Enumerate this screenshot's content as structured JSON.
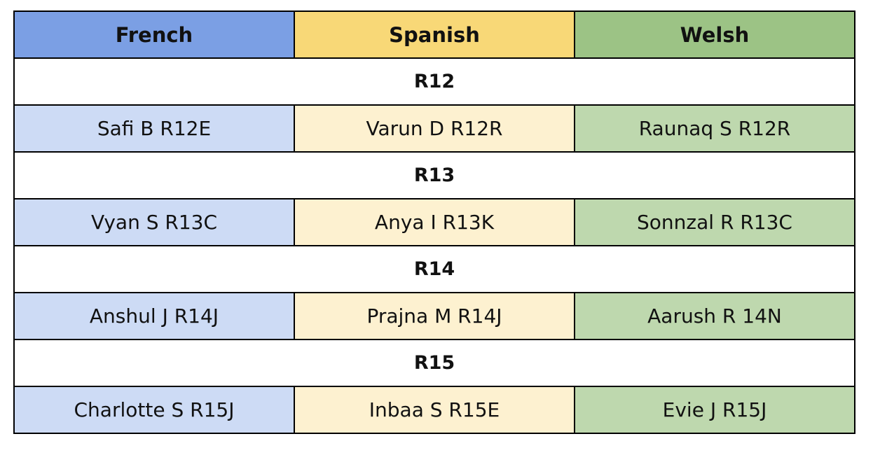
{
  "colors": {
    "french_header": "#7b9fe4",
    "spanish_header": "#f8d877",
    "welsh_header": "#9cc385",
    "french_cell": "#cddbf5",
    "spanish_cell": "#fdf1d0",
    "welsh_cell": "#bed8ae",
    "border": "#000000"
  },
  "table": {
    "headers": [
      "French",
      "Spanish",
      "Welsh"
    ],
    "groups": [
      {
        "label": "R12",
        "cells": [
          "Safi B R12E",
          "Varun D R12R",
          "Raunaq S R12R"
        ]
      },
      {
        "label": "R13",
        "cells": [
          "Vyan S R13C",
          "Anya I R13K",
          "Sonnzal R R13C"
        ]
      },
      {
        "label": "R14",
        "cells": [
          "Anshul J R14J",
          "Prajna M R14J",
          "Aarush R 14N"
        ]
      },
      {
        "label": "R15",
        "cells": [
          "Charlotte S R15J",
          "Inbaa S R15E",
          "Evie J R15J"
        ]
      }
    ]
  }
}
